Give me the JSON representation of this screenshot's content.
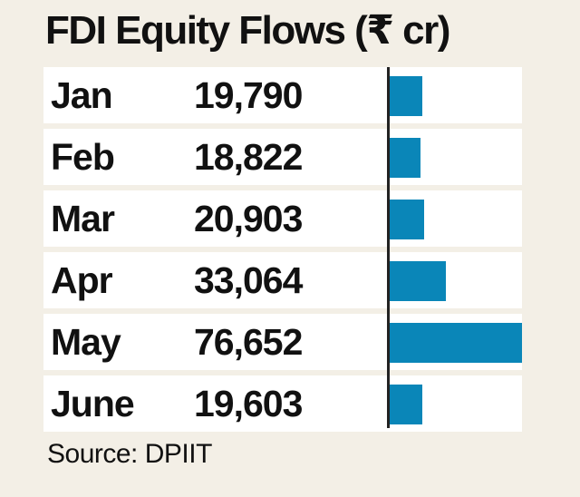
{
  "chart_data": {
    "type": "bar",
    "orientation": "horizontal",
    "title": "FDI Equity Flows (₹ cr)",
    "categories": [
      "Jan",
      "Feb",
      "Mar",
      "Apr",
      "May",
      "June"
    ],
    "values": [
      19790,
      18822,
      20903,
      33064,
      76652,
      19603
    ],
    "value_labels": [
      "19,790",
      "18,822",
      "20,903",
      "33,064",
      "76,652",
      "19,603"
    ],
    "xlabel": "",
    "ylabel": "",
    "xlim": [
      0,
      76652
    ],
    "grid": false,
    "legend": "none",
    "source": "Source: DPIIT"
  },
  "colors": {
    "bar": "#0a86b8",
    "background": "#f3efe6",
    "row": "#ffffff"
  }
}
